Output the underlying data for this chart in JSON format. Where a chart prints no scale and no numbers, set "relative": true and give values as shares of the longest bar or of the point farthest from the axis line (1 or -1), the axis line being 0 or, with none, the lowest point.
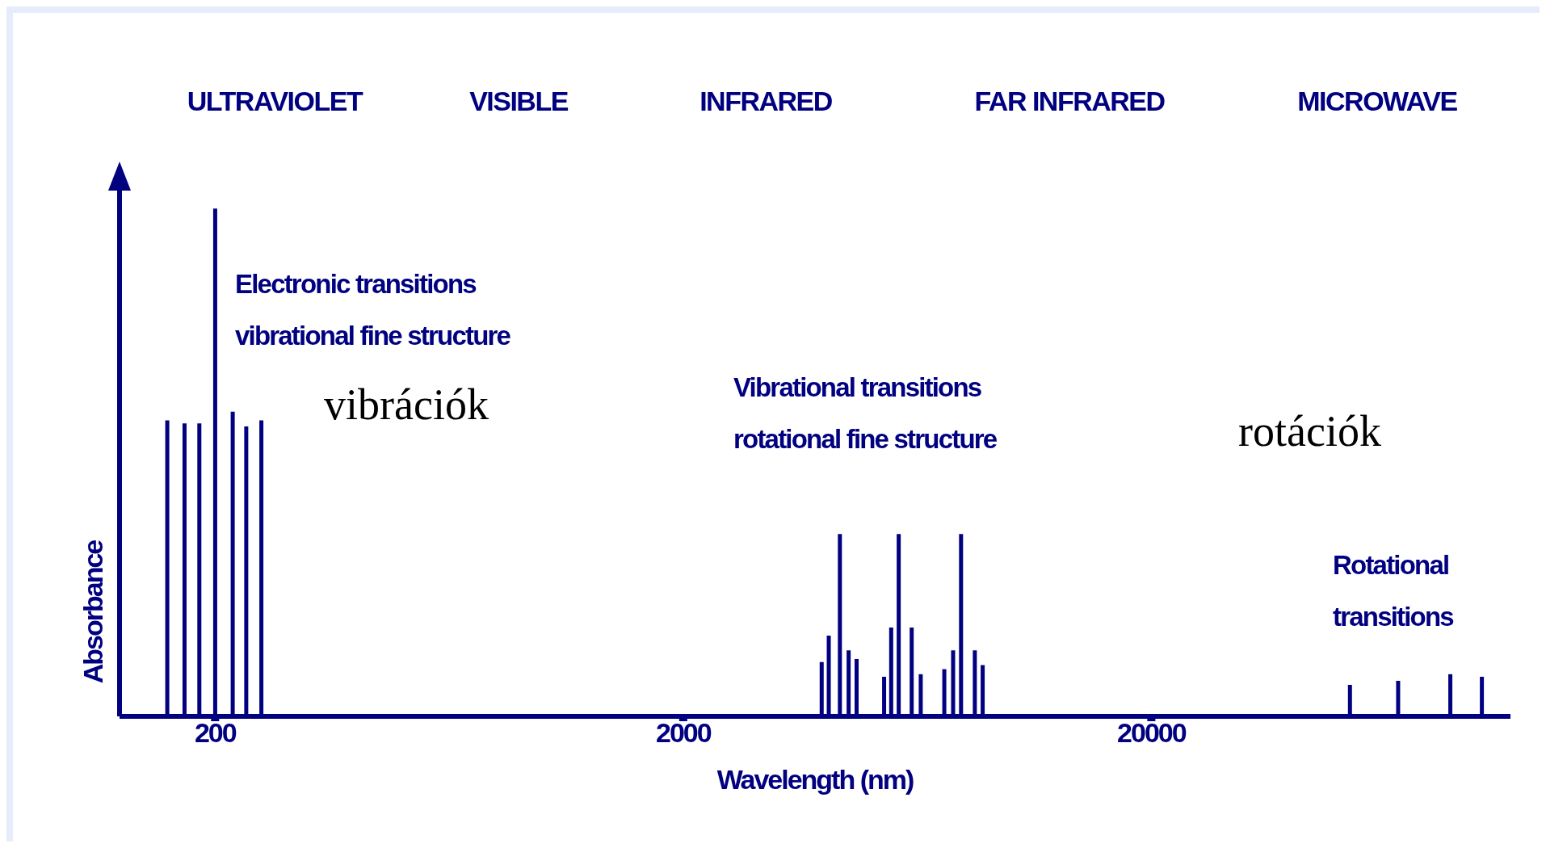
{
  "chart_data": {
    "type": "bar",
    "xlabel": "Wavelength (nm)",
    "ylabel": "Absorbance",
    "relative": true,
    "log": "x",
    "xlim": [
      125,
      117000
    ],
    "xticks": [
      200,
      2000,
      20000
    ],
    "color": "#000080",
    "x": [
      158,
      172,
      185,
      200,
      218,
      233,
      251,
      3950,
      4090,
      4320,
      4510,
      4690,
      5370,
      5560,
      5770,
      6150,
      6430,
      7220,
      7540,
      7840,
      8390,
      8720,
      53100,
      67300,
      87000,
      101600
    ],
    "values": [
      0.583,
      0.577,
      0.577,
      1,
      0.6,
      0.571,
      0.583,
      0.107,
      0.159,
      0.359,
      0.13,
      0.113,
      0.078,
      0.175,
      0.359,
      0.175,
      0.083,
      0.093,
      0.13,
      0.359,
      0.13,
      0.101,
      0.062,
      0.07,
      0.083,
      0.078
    ],
    "annotations": [
      "ULTRAVIOLET",
      "VISIBLE",
      "INFRARED",
      "FAR INFRARED",
      "MICROWAVE",
      "Electronic transitions\nvibrational fine structure",
      "vibrációk",
      "Vibrational transitions\nrotational fine structure",
      "rotációk",
      "Rotational\ntransitions"
    ]
  }
}
